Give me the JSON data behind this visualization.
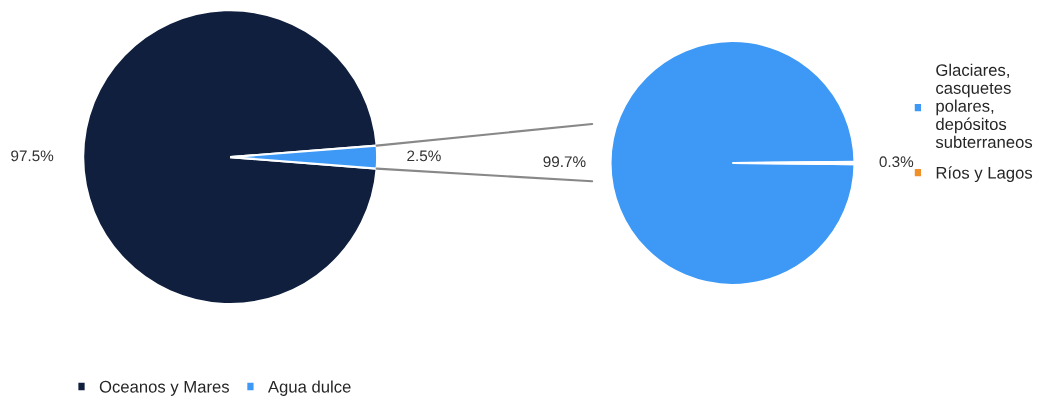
{
  "chart_data": [
    {
      "type": "pie",
      "categories": [
        "Oceanos y Mares",
        "Agua dulce"
      ],
      "values": [
        97.5,
        2.5
      ],
      "colors": [
        "#0f1f3d",
        "#3d99f5"
      ],
      "value_labels": [
        "97.5%",
        "2.5%"
      ],
      "legend": "bottom"
    },
    {
      "type": "pie",
      "categories": [
        "Glaciares, casquetes polares, depósitos subterraneos",
        "Ríos y Lagos"
      ],
      "values": [
        99.7,
        0.3
      ],
      "colors": [
        "#3d99f5",
        "#f0902a"
      ],
      "value_labels": [
        "99.7%",
        "0.3%"
      ],
      "legend": "right"
    }
  ]
}
